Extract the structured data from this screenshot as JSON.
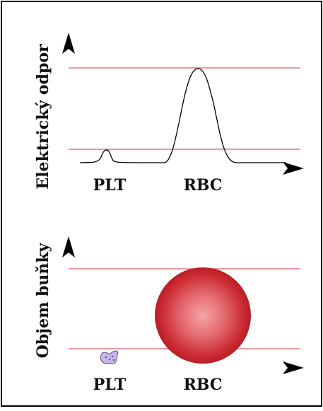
{
  "top_panel": {
    "axis_label": "Elektrický odpor",
    "labels": [
      "PLT",
      "RBC"
    ]
  },
  "bottom_panel": {
    "axis_label": "Objem buňky",
    "labels": [
      "PLT",
      "RBC"
    ]
  }
}
